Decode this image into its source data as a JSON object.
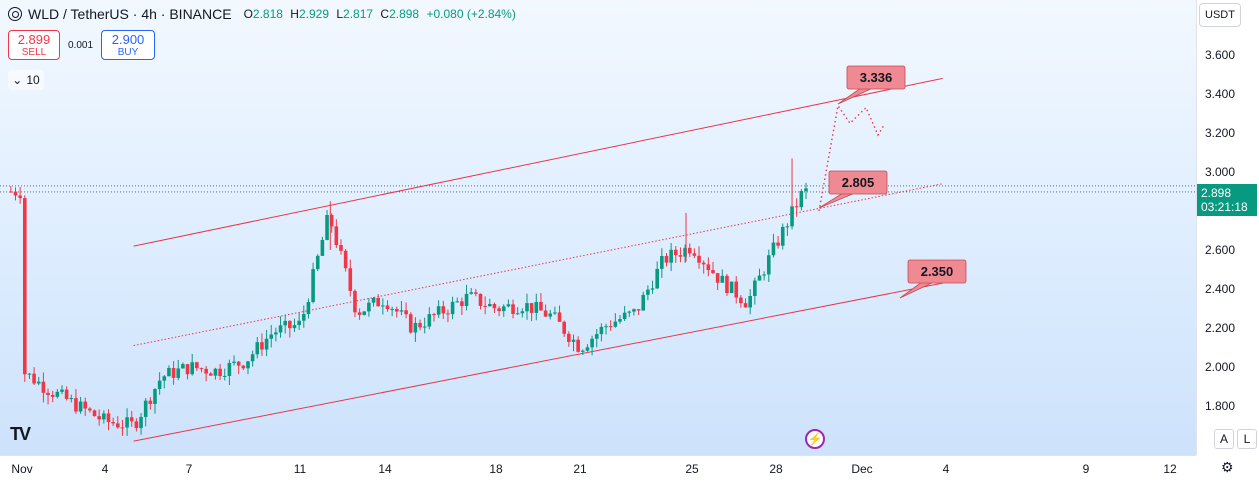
{
  "header": {
    "symbol": "WLD / TetherUS · 4h · BINANCE",
    "ohlc": {
      "o_label": "O",
      "o": "2.818",
      "h_label": "H",
      "h": "2.929",
      "l_label": "L",
      "l": "2.817",
      "c_label": "C",
      "c": "2.898",
      "change": "+0.080 (+2.84%)"
    }
  },
  "trade": {
    "sell_price": "2.899",
    "sell_label": "SELL",
    "spread": "0.001",
    "buy_price": "2.900",
    "buy_label": "BUY"
  },
  "indicators_toggle": {
    "count": "10"
  },
  "price_scale": {
    "currency": "USDT",
    "last_price": "2.898",
    "countdown": "03:21:18",
    "ticks": [
      "3.600",
      "3.400",
      "3.200",
      "3.000",
      "2.600",
      "2.400",
      "2.200",
      "2.000",
      "1.800"
    ]
  },
  "time_axis": {
    "ticks": [
      "Nov",
      "4",
      "7",
      "11",
      "14",
      "18",
      "21",
      "25",
      "28",
      "Dec",
      "4",
      "9",
      "12"
    ]
  },
  "axis_buttons": {
    "auto": "A",
    "log": "L"
  },
  "colors": {
    "up": "#089981",
    "down": "#f23645",
    "channel": "#e8374a",
    "label_bg": "#f08a92",
    "price_line": "#089981"
  },
  "icons": {
    "logo": "tradingview-logo",
    "alert": "lightning-icon",
    "settings": "gear-icon",
    "chevron": "chevron-down-icon"
  },
  "chart_data": {
    "type": "candlestick",
    "symbol": "WLD/USDT",
    "interval": "4h",
    "ylim": [
      1.65,
      3.72
    ],
    "grid": false,
    "annotations": [
      {
        "label": "3.336",
        "value": 3.336
      },
      {
        "label": "2.805",
        "value": 2.805
      },
      {
        "label": "2.350",
        "value": 2.35
      }
    ],
    "channel": {
      "upper": [
        {
          "x": "Nov 5",
          "y": 2.62
        },
        {
          "x": "Dec 4",
          "y": 3.48
        }
      ],
      "middle": [
        {
          "x": "Nov 5",
          "y": 2.11
        },
        {
          "x": "Dec 4",
          "y": 2.94
        }
      ],
      "lower": [
        {
          "x": "Nov 5",
          "y": 1.62
        },
        {
          "x": "Dec 4",
          "y": 2.43
        }
      ]
    },
    "projection": [
      {
        "x": "Nov 29",
        "y": 2.8
      },
      {
        "x": "Nov 30",
        "y": 3.34
      },
      {
        "x": "Dec 1",
        "y": 3.25
      },
      {
        "x": "Dec 1",
        "y": 3.33
      },
      {
        "x": "Dec 2",
        "y": 3.19
      },
      {
        "x": "Dec 2",
        "y": 3.24
      }
    ],
    "series_points": [
      [
        "Nov 1",
        1.98
      ],
      [
        "Nov 2",
        1.88
      ],
      [
        "Nov 3",
        1.8
      ],
      [
        "Nov 4",
        1.72
      ],
      [
        "Nov 5",
        1.7
      ],
      [
        "Nov 6",
        1.95
      ],
      [
        "Nov 7",
        2.0
      ],
      [
        "Nov 8",
        1.98
      ],
      [
        "Nov 9",
        2.03
      ],
      [
        "Nov 10",
        2.18
      ],
      [
        "Nov 11",
        2.22
      ],
      [
        "Nov 12",
        2.78
      ],
      [
        "Nov 13",
        2.28
      ],
      [
        "Nov 14",
        2.35
      ],
      [
        "Nov 15",
        2.2
      ],
      [
        "Nov 16",
        2.28
      ],
      [
        "Nov 17",
        2.36
      ],
      [
        "Nov 18",
        2.3
      ],
      [
        "Nov 19",
        2.32
      ],
      [
        "Nov 20",
        2.26
      ],
      [
        "Nov 21",
        2.1
      ],
      [
        "Nov 22",
        2.22
      ],
      [
        "Nov 23",
        2.28
      ],
      [
        "Nov 24",
        2.55
      ],
      [
        "Nov 25",
        2.62
      ],
      [
        "Nov 26",
        2.45
      ],
      [
        "Nov 27",
        2.33
      ],
      [
        "Nov 28",
        2.62
      ],
      [
        "Nov 29",
        2.9
      ]
    ]
  }
}
